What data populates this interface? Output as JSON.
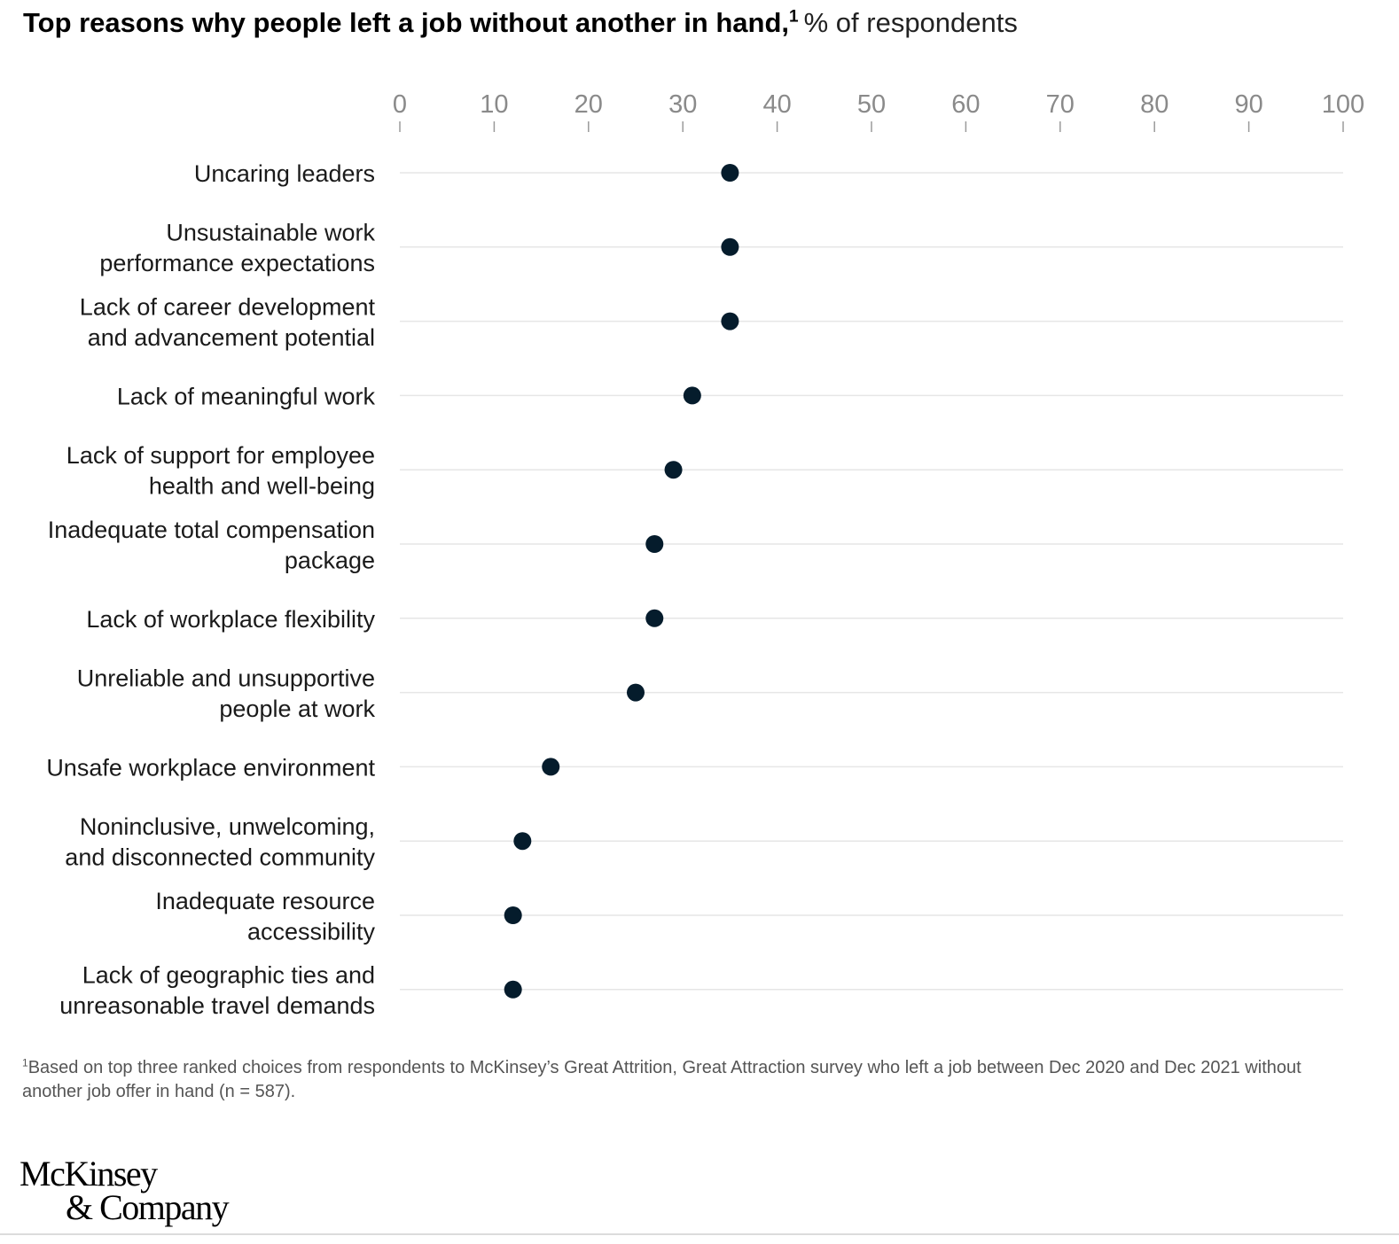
{
  "title": {
    "main": "Top reasons why people left a job without another in hand,",
    "sup": "1",
    "unit": "% of respondents"
  },
  "chart_data": {
    "type": "scatter",
    "title": "Top reasons why people left a job without another in hand,",
    "xlabel": "% of respondents",
    "ylabel": "",
    "xlim": [
      0,
      100
    ],
    "x_ticks": [
      0,
      10,
      20,
      30,
      40,
      50,
      60,
      70,
      80,
      90,
      100
    ],
    "grid": true,
    "dot_color": "#051c2c",
    "categories": [
      [
        "Uncaring leaders"
      ],
      [
        "Unsustainable work",
        "performance expectations"
      ],
      [
        "Lack of career development",
        "and advancement potential"
      ],
      [
        "Lack of meaningful work"
      ],
      [
        "Lack of support for employee",
        "health and well-being"
      ],
      [
        "Inadequate total compensation",
        "package"
      ],
      [
        "Lack of workplace flexibility"
      ],
      [
        "Unreliable and unsupportive",
        "people at work"
      ],
      [
        "Unsafe workplace environment"
      ],
      [
        "Noninclusive, unwelcoming,",
        "and disconnected community"
      ],
      [
        "Inadequate resource",
        "accessibility"
      ],
      [
        "Lack of geographic ties and",
        "unreasonable travel demands"
      ]
    ],
    "values": [
      35,
      35,
      35,
      31,
      29,
      27,
      27,
      25,
      16,
      13,
      12,
      12
    ]
  },
  "footnote": {
    "sup": "1",
    "text": "Based on top three ranked choices from respondents to McKinsey’s Great Attrition, Great Attraction survey who left a job between Dec 2020 and Dec 2021 without another job offer in hand (n = 587)."
  },
  "logo": {
    "line1": "McKinsey",
    "line2": "& Company"
  }
}
